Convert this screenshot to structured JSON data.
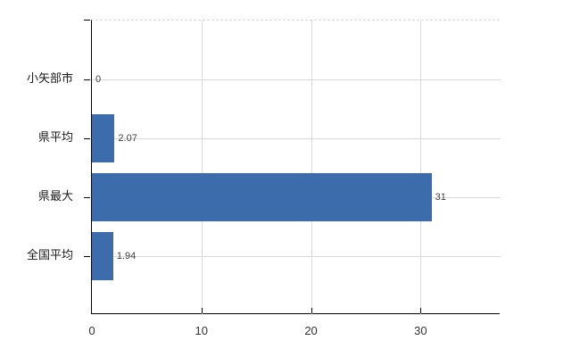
{
  "chart_data": {
    "type": "bar",
    "orientation": "horizontal",
    "categories": [
      "小矢部市",
      "県平均",
      "県最大",
      "全国平均"
    ],
    "values": [
      0,
      2.07,
      31,
      1.94
    ],
    "value_labels": [
      "0",
      "2.07",
      "31",
      "1.94"
    ],
    "xticks": [
      0,
      10,
      20,
      30
    ],
    "xtick_labels": [
      "0",
      "10",
      "20",
      "30"
    ],
    "xlim": [
      0,
      37.3
    ],
    "grid": true,
    "legend": false,
    "bar_color": "#3c6cac",
    "gridline_color": "#d9d9d9",
    "axis_color": "#000000",
    "text_color": "#333333"
  }
}
